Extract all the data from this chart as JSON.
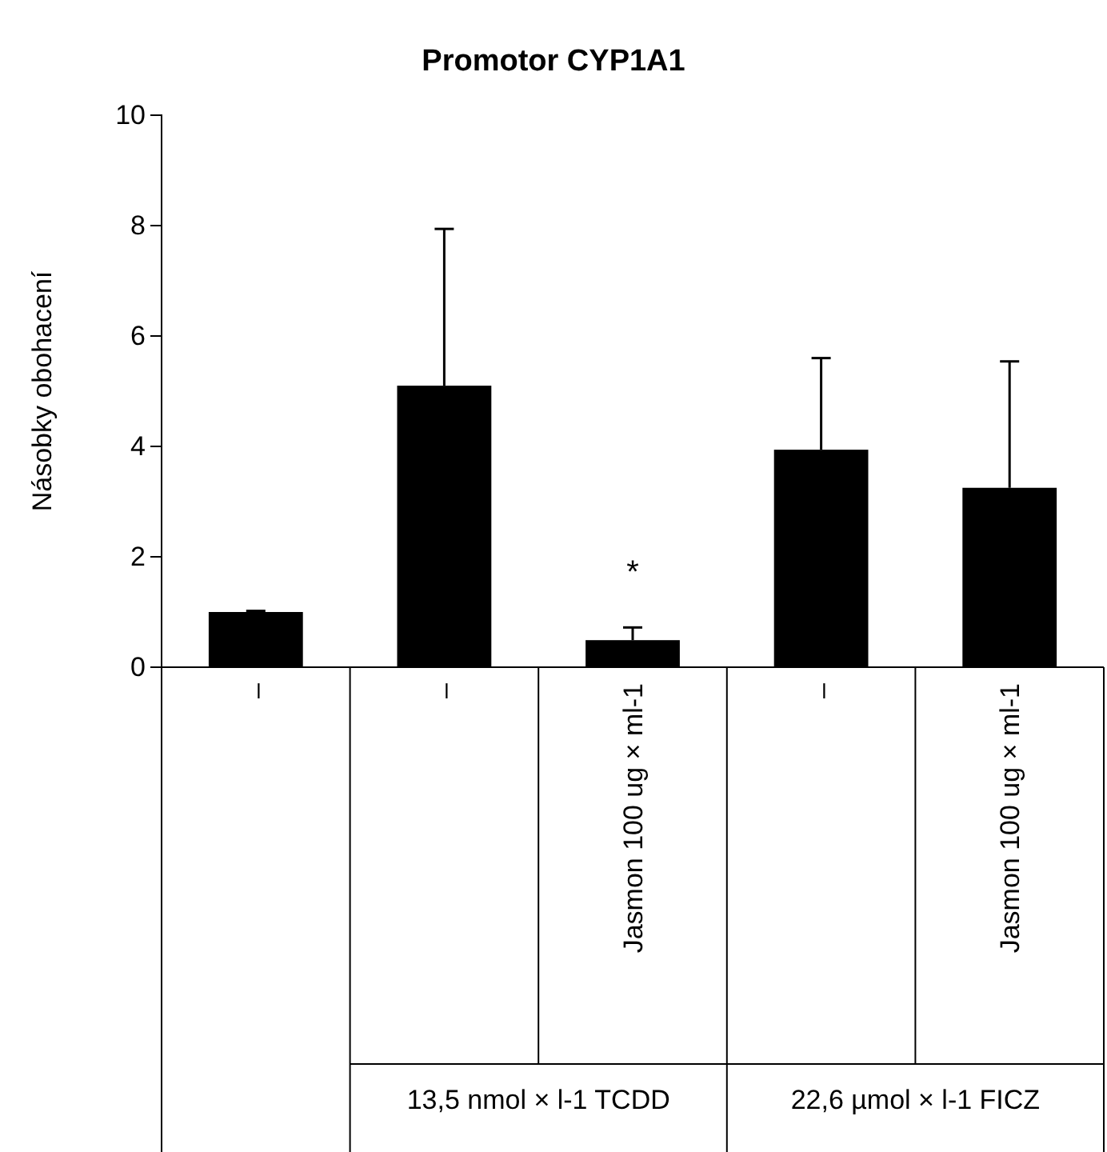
{
  "chart_data": {
    "type": "bar",
    "title": "Promotor CYP1A1",
    "ylabel": "Násobky obohacení",
    "categories": [
      "–",
      "–",
      "Jasmon 100 ug × ml-1",
      "–",
      "Jasmon 100 ug × ml-1"
    ],
    "values": [
      1.0,
      5.1,
      0.49,
      3.94,
      3.25
    ],
    "errors": [
      [
        1.0,
        1.02
      ],
      [
        5.1,
        7.94
      ],
      [
        0.49,
        0.72
      ],
      [
        3.94,
        5.6
      ],
      [
        3.25,
        5.54
      ]
    ],
    "color": "#000000",
    "ylim": [
      0,
      10
    ],
    "yticks": [
      0,
      2,
      4,
      6,
      8,
      10
    ],
    "grid": false,
    "annotations": [
      "*",
      "13,5 nmol × l-1 TCDD",
      "22,6 µmol × l-1 FICZ"
    ]
  }
}
